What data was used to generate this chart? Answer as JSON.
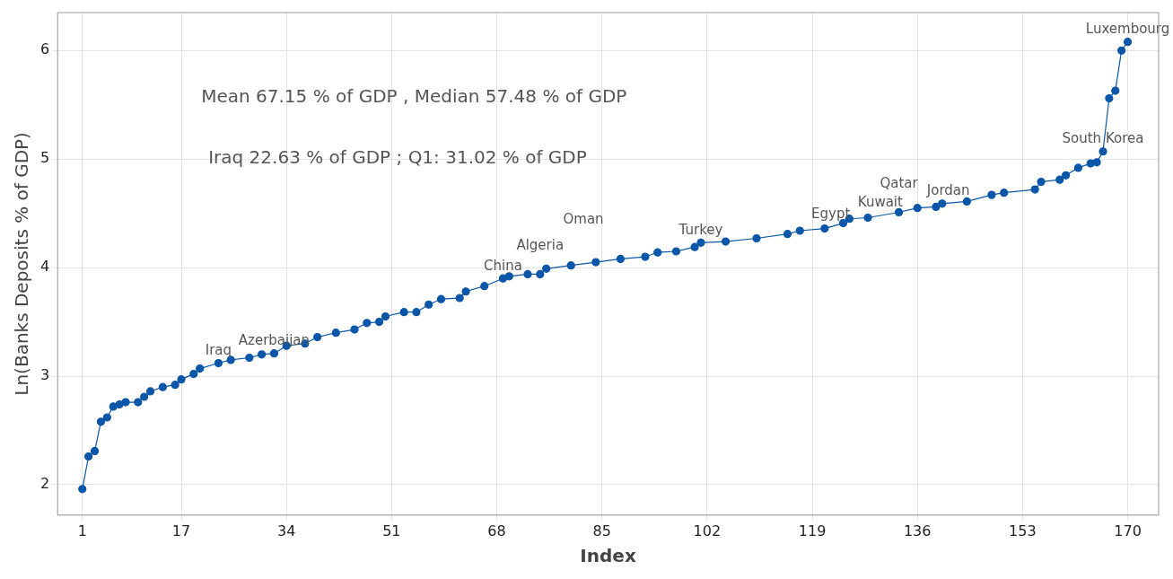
{
  "chart_data": {
    "type": "line",
    "xlabel": "Index",
    "ylabel": "Ln(Banks Deposits % of GDP)",
    "series": [
      {
        "color": "#0a56a8",
        "x": [
          1,
          2,
          3,
          4,
          5,
          6,
          7,
          8,
          10,
          11,
          12,
          14,
          16,
          17,
          19,
          20,
          23,
          25,
          28,
          30,
          32,
          34,
          37,
          39,
          42,
          45,
          47,
          49,
          50,
          53,
          55,
          57,
          59,
          62,
          63,
          66,
          69,
          70,
          73,
          75,
          76,
          80,
          84,
          88,
          92,
          94,
          97,
          100,
          101,
          105,
          110,
          115,
          117,
          121,
          124,
          125,
          128,
          133,
          136,
          139,
          140,
          144,
          148,
          150,
          155,
          156,
          159,
          160,
          162,
          164,
          165,
          166,
          167,
          168,
          169,
          170
        ],
        "values": [
          1.96,
          2.26,
          2.31,
          2.58,
          2.62,
          2.72,
          2.74,
          2.76,
          2.76,
          2.81,
          2.86,
          2.9,
          2.92,
          2.97,
          3.02,
          3.07,
          3.12,
          3.15,
          3.17,
          3.2,
          3.21,
          3.28,
          3.3,
          3.36,
          3.4,
          3.43,
          3.49,
          3.5,
          3.55,
          3.59,
          3.59,
          3.66,
          3.71,
          3.72,
          3.78,
          3.83,
          3.9,
          3.92,
          3.94,
          3.94,
          3.99,
          4.02,
          4.05,
          4.08,
          4.1,
          4.14,
          4.15,
          4.19,
          4.23,
          4.24,
          4.27,
          4.31,
          4.34,
          4.36,
          4.41,
          4.45,
          4.46,
          4.51,
          4.55,
          4.56,
          4.59,
          4.61,
          4.67,
          4.69,
          4.72,
          4.79,
          4.81,
          4.85,
          4.92,
          4.96,
          4.97,
          5.07,
          5.56,
          5.63,
          6.0,
          6.08
        ]
      }
    ],
    "xlim": [
      -3,
      175
    ],
    "ylim": [
      1.72,
      6.35
    ],
    "xticks": [
      1,
      17,
      34,
      51,
      68,
      85,
      102,
      119,
      136,
      153,
      170
    ],
    "yticks": [
      2,
      3,
      4,
      5,
      6
    ],
    "grid": true,
    "legend": false,
    "marker": "circle",
    "line_style": "solid",
    "annotations": [
      "Mean 67.15 % of GDP , Median 57.48 % of GDP",
      "Iraq 22.63 % of GDP ; Q1: 31.02 % of GDP",
      {
        "text": "Iraq",
        "x": 23,
        "y": 3.12
      },
      {
        "text": "Azerbaijan",
        "x": 32,
        "y": 3.21
      },
      {
        "text": "China",
        "x": 69,
        "y": 3.9
      },
      {
        "text": "Algeria",
        "x": 75,
        "y": 3.94
      },
      {
        "text": "Oman",
        "x": 82,
        "y": 4.03
      },
      {
        "text": "Turkey",
        "x": 101,
        "y": 4.23
      },
      {
        "text": "Egypt",
        "x": 122,
        "y": 4.38
      },
      {
        "text": "Kuwait",
        "x": 130,
        "y": 4.48
      },
      {
        "text": "Qatar",
        "x": 133,
        "y": 4.51
      },
      {
        "text": "Jordan",
        "x": 141,
        "y": 4.59
      },
      {
        "text": "South Korea",
        "x": 166,
        "y": 5.07
      },
      {
        "text": "Luxembourg",
        "x": 170,
        "y": 6.08
      }
    ]
  }
}
